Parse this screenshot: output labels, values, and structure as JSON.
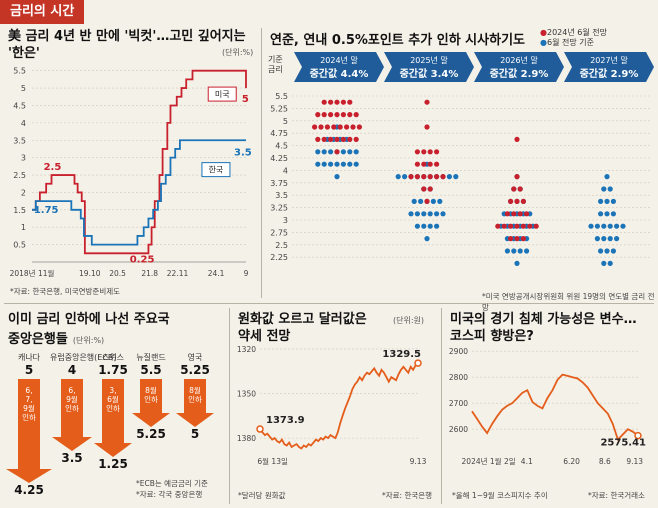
{
  "header": {
    "tag": "금리의 시간"
  },
  "colors": {
    "red": "#c8202d",
    "blue": "#1b74b8",
    "orange": "#e45d1a",
    "navy": "#1f5c99",
    "grid": "#cfc9bb"
  },
  "panel1": {
    "title": "美 금리 4년 반 만에 '빅컷'…고민 깊어지는 '한은'",
    "unit": "(단위:%)",
    "note": "*자료: 한국은행, 미국연방준비제도",
    "legend_us": "미국",
    "legend_kr": "한국",
    "chart_data": {
      "type": "line",
      "ylim": [
        0,
        5.75
      ],
      "yticks": [
        "5.5",
        "5",
        "4.5",
        "4",
        "3.5",
        "3",
        "2.5",
        "2",
        "1.5",
        "1",
        "0.5"
      ],
      "xticks": [
        "2018년 11월",
        "19.10",
        "20.5",
        "21.8",
        "22.11",
        "24.1",
        "9"
      ],
      "annotations": {
        "us_peak": "2.5",
        "kr_19": "1.75",
        "us_low": "0.25",
        "us_now": "5",
        "kr_now": "3.5"
      },
      "series": [
        {
          "name": "미국",
          "points": [
            [
              0,
              1.5
            ],
            [
              1.2,
              1.75
            ],
            [
              2.5,
              2
            ],
            [
              4.5,
              2.25
            ],
            [
              6.2,
              2.5
            ],
            [
              12,
              2.5
            ],
            [
              13.5,
              2.25
            ],
            [
              14.5,
              2
            ],
            [
              15.8,
              1.75
            ],
            [
              16.8,
              0.25
            ],
            [
              36,
              0.25
            ],
            [
              37,
              0.5
            ],
            [
              38,
              1
            ],
            [
              39,
              1.75
            ],
            [
              40.5,
              2.5
            ],
            [
              41.5,
              3.25
            ],
            [
              43,
              4
            ],
            [
              44,
              4.5
            ],
            [
              46,
              4.75
            ],
            [
              47.5,
              5
            ],
            [
              49,
              5.25
            ],
            [
              51,
              5.5
            ],
            [
              67,
              5.5
            ],
            [
              68,
              5
            ]
          ]
        },
        {
          "name": "한국",
          "points": [
            [
              0,
              1.5
            ],
            [
              1.2,
              1.75
            ],
            [
              10,
              1.75
            ],
            [
              12.5,
              1.5
            ],
            [
              15.5,
              1.25
            ],
            [
              16.5,
              0.75
            ],
            [
              19,
              0.5
            ],
            [
              32,
              0.5
            ],
            [
              33.5,
              0.75
            ],
            [
              35.5,
              1
            ],
            [
              37,
              1.25
            ],
            [
              38.5,
              1.5
            ],
            [
              40,
              1.75
            ],
            [
              41,
              2.25
            ],
            [
              42.5,
              2.5
            ],
            [
              44,
              3
            ],
            [
              45.5,
              3.25
            ],
            [
              47,
              3.5
            ],
            [
              68,
              3.5
            ]
          ]
        }
      ]
    }
  },
  "panel2": {
    "title": "연준, 연내 0.5%포인트 추가 인하 시사하기도",
    "legend_red": "2024년 6월 전망",
    "legend_blue": "6월 전망 기준",
    "yaxis_title": "기준 금리",
    "note": "*미국 연방공개시장위원회 위원 19명의 연도별 금리 전망",
    "chart_data": {
      "type": "scatter",
      "ylevels": [
        "5.5",
        "5.25",
        "5",
        "4.75",
        "4.5",
        "4.25",
        "4",
        "3.75",
        "3.5",
        "3.25",
        "3",
        "2.75",
        "2.5",
        "2.25"
      ],
      "banners": [
        {
          "year": "2024년 말",
          "label": "중간값 4.4%"
        },
        {
          "year": "2025년 말",
          "label": "중간값 3.4%"
        },
        {
          "year": "2026년 말",
          "label": "중간값 2.9%"
        },
        {
          "year": "2027년 말",
          "label": "중간값 2.9%"
        }
      ],
      "dots": [
        {
          "col": 0,
          "red": {
            "5.375": 5,
            "5.125": 7,
            "4.875": 8,
            "4.625": 7,
            "4.375": 1,
            "4.125": 0
          },
          "blue": {
            "5.125": 0,
            "4.875": 1,
            "4.625": 4,
            "4.375": 7,
            "4.125": 7,
            "3.875": 1
          }
        },
        {
          "col": 1,
          "red": {
            "5.375": 1,
            "4.875": 1,
            "4.375": 4,
            "4.125": 4,
            "3.875": 6,
            "3.625": 2,
            "3.375": 1
          },
          "blue": {
            "4.125": 1,
            "3.875": 10,
            "3.625": 2,
            "3.375": 5,
            "3.125": 6,
            "2.875": 4,
            "2.625": 1
          }
        },
        {
          "col": 2,
          "red": {
            "4.625": 1,
            "3.875": 1,
            "3.625": 2,
            "3.375": 3,
            "3.125": 4,
            "2.875": 7,
            "2.625": 3
          },
          "blue": {
            "3.875": 1,
            "3.625": 2,
            "3.375": 3,
            "3.125": 5,
            "2.875": 6,
            "2.625": 4,
            "2.375": 4,
            "2.125": 1
          }
        },
        {
          "col": 3,
          "red": {},
          "blue": {
            "3.875": 1,
            "3.625": 2,
            "3.375": 3,
            "3.125": 3,
            "2.875": 6,
            "2.625": 4,
            "2.375": 3,
            "2.125": 2
          }
        }
      ]
    }
  },
  "panel3": {
    "title_l1": "이미 금리 인하에 나선 주요국",
    "title_l2": "중앙은행들",
    "unit": "(단위:%)",
    "note1": "*ECB는 예금금리 기준",
    "note2": "*자료: 각국 중앙은행",
    "chart_data": {
      "type": "table",
      "banks": [
        {
          "name": "캐나다",
          "from": "5",
          "to": "4.25",
          "label": "6, 7, 9월 인하"
        },
        {
          "name": "유럽중앙은행(ECB)",
          "from": "4",
          "to": "3.5",
          "label": "6, 9월 인하"
        },
        {
          "name": "스위스",
          "from": "1.75",
          "to": "1.25",
          "label": "3, 6월 인하"
        },
        {
          "name": "뉴질랜드",
          "from": "5.5",
          "to": "5.25",
          "label": "8월 인하"
        },
        {
          "name": "영국",
          "from": "5.25",
          "to": "5",
          "label": "8월 인하"
        }
      ]
    }
  },
  "panel4": {
    "title_l1": "원화값 오르고 달러값은",
    "title_l2": "약세 전망",
    "unit": "(단위:원)",
    "note1": "*달러당 원화값",
    "note2": "*자료: 한국은행",
    "chart_data": {
      "type": "line",
      "yticks": [
        "1320",
        "1350",
        "1380"
      ],
      "ylim": [
        1388,
        1318
      ],
      "xticks": [
        "6월 13일",
        "9.13"
      ],
      "start_label": "1373.9",
      "end_label": "1329.5",
      "values": [
        1373.9,
        1376,
        1378,
        1377,
        1379,
        1381,
        1380,
        1382,
        1383,
        1381,
        1384,
        1385,
        1383,
        1386,
        1385,
        1384,
        1386,
        1387,
        1385,
        1386,
        1384,
        1385,
        1383,
        1381,
        1382,
        1380,
        1381,
        1379,
        1380,
        1378,
        1379,
        1380,
        1376,
        1370,
        1365,
        1360,
        1356,
        1352,
        1347,
        1344,
        1342,
        1339,
        1341,
        1338,
        1336,
        1337,
        1335,
        1333,
        1336,
        1338,
        1334,
        1336,
        1339,
        1342,
        1339,
        1340,
        1341,
        1337,
        1334,
        1332,
        1334,
        1336,
        1332,
        1334,
        1331,
        1329.5
      ]
    }
  },
  "panel5": {
    "title_l1": "미국의 경기 침체 가능성은 변수…",
    "title_l2": "코스피 향방은?",
    "note1": "*올해 1~9월 코스피지수 추이",
    "note2": "*자료: 한국거래소",
    "chart_data": {
      "type": "line",
      "yticks": [
        "2900",
        "2800",
        "2700",
        "2600"
      ],
      "ylim": [
        2520,
        2920
      ],
      "xticks": [
        "2024년 1월 2일",
        "4.1",
        "6.20",
        "8.6",
        "9.13"
      ],
      "end_label": "2575.41",
      "values": [
        2669,
        2640,
        2610,
        2585,
        2620,
        2650,
        2675,
        2690,
        2700,
        2720,
        2740,
        2750,
        2705,
        2690,
        2680,
        2720,
        2750,
        2790,
        2810,
        2805,
        2800,
        2795,
        2780,
        2760,
        2730,
        2700,
        2680,
        2660,
        2620,
        2560,
        2580,
        2600,
        2590,
        2575.41
      ]
    }
  }
}
